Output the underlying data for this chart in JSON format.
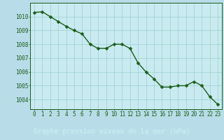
{
  "x": [
    0,
    1,
    2,
    3,
    4,
    5,
    6,
    7,
    8,
    9,
    10,
    11,
    12,
    13,
    14,
    15,
    16,
    17,
    18,
    19,
    20,
    21,
    22,
    23
  ],
  "y": [
    1010.3,
    1010.35,
    1010.0,
    1009.65,
    1009.3,
    1009.0,
    1008.75,
    1008.0,
    1007.7,
    1007.7,
    1008.0,
    1008.0,
    1007.7,
    1006.65,
    1006.0,
    1005.5,
    1004.9,
    1004.9,
    1005.0,
    1005.0,
    1005.3,
    1005.0,
    1004.2,
    1003.65
  ],
  "background_color": "#b8dde8",
  "plot_bg_color": "#c8eaf0",
  "line_color": "#1a5c1a",
  "marker_color": "#1a5c1a",
  "grid_color": "#9dcfcc",
  "xlabel": "Graphe pression niveau de la mer (hPa)",
  "xlabel_bg": "#2e6b2e",
  "xlabel_color": "#c8eaf0",
  "tick_color": "#1a5c1a",
  "ylim": [
    1003.3,
    1011.0
  ],
  "xlim": [
    -0.5,
    23.5
  ],
  "yticks": [
    1004,
    1005,
    1006,
    1007,
    1008,
    1009,
    1010
  ],
  "xticks": [
    0,
    1,
    2,
    3,
    4,
    5,
    6,
    7,
    8,
    9,
    10,
    11,
    12,
    13,
    14,
    15,
    16,
    17,
    18,
    19,
    20,
    21,
    22,
    23
  ],
  "ytick_labels": [
    "1004",
    "1005",
    "1006",
    "1007",
    "1008",
    "1009",
    "1010"
  ],
  "xtick_labels": [
    "0",
    "1",
    "2",
    "3",
    "4",
    "5",
    "6",
    "7",
    "8",
    "9",
    "10",
    "11",
    "12",
    "13",
    "14",
    "15",
    "16",
    "17",
    "18",
    "19",
    "20",
    "21",
    "22",
    "23"
  ],
  "marker_size": 2.5,
  "line_width": 1.0,
  "font_size_ticks": 5.5,
  "font_size_xlabel": 7.0
}
